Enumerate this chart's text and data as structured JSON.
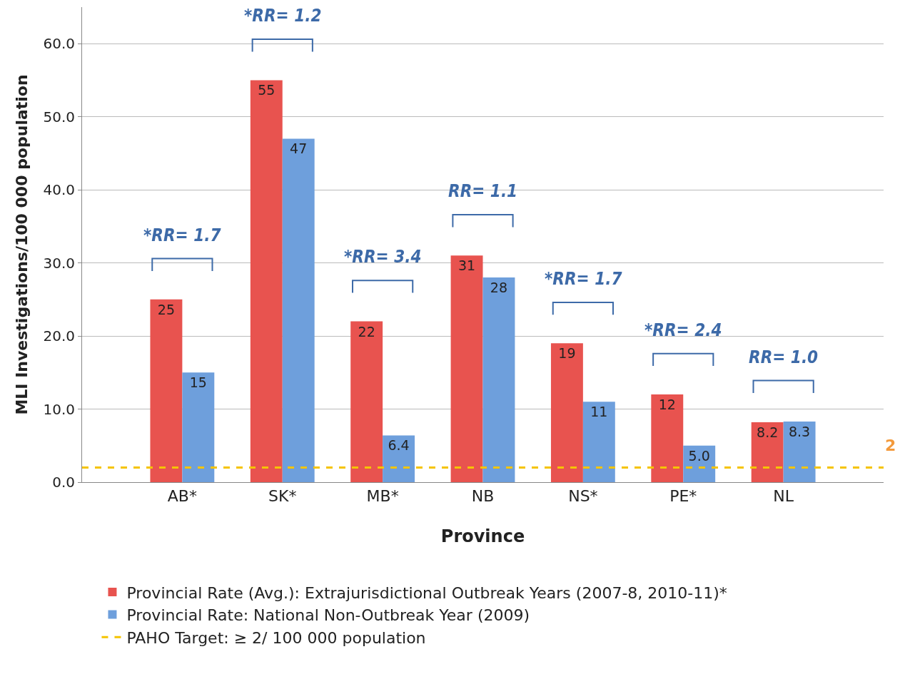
{
  "chart_data": {
    "type": "bar",
    "xlabel": "Province",
    "ylabel": "MLI Investigations/100 000 population",
    "categories": [
      "AB*",
      "SK*",
      "MB*",
      "NB",
      "NS*",
      "PE*",
      "NL"
    ],
    "series": [
      {
        "name": "Provincial Rate (Avg.): Extrajurisdictional Outbreak Years (2007-8, 2010-11)*",
        "color": "#e8534f",
        "values": [
          25,
          55,
          22,
          31,
          19,
          12,
          8.2
        ]
      },
      {
        "name": "Provincial Rate: National Non-Outbreak Year (2009)",
        "color": "#6e9fdc",
        "values": [
          15,
          47,
          6.4,
          28,
          11,
          5.0,
          8.3
        ]
      }
    ],
    "value_labels": [
      [
        "25",
        "55",
        "22",
        "31",
        "19",
        "12",
        "8.2"
      ],
      [
        "15",
        "47",
        "6.4",
        "28",
        "11",
        "5.0",
        "8.3"
      ]
    ],
    "ylim": [
      0,
      65
    ],
    "yticks": [
      {
        "value": 0,
        "label": "0.0"
      },
      {
        "value": 10,
        "label": "10.0"
      },
      {
        "value": 20,
        "label": "20.0"
      },
      {
        "value": 30,
        "label": "30.0"
      },
      {
        "value": 40,
        "label": "40.0"
      },
      {
        "value": 50,
        "label": "50.0"
      },
      {
        "value": 60,
        "label": "60.0"
      }
    ],
    "grid": "y",
    "legend": "bottom",
    "ref_lines": [
      {
        "axis": "y",
        "value": 2,
        "label": "PAHO Target: ≥ 2/ 100 000 population",
        "color": "#f5c400",
        "line_style": "dashed"
      }
    ],
    "annotations": [
      "*RR= 1.7",
      "*RR= 1.2",
      "*RR= 3.4",
      "RR= 1.1",
      "*RR= 1.7",
      "*RR= 2.4",
      "RR= 1.0",
      "2"
    ]
  }
}
